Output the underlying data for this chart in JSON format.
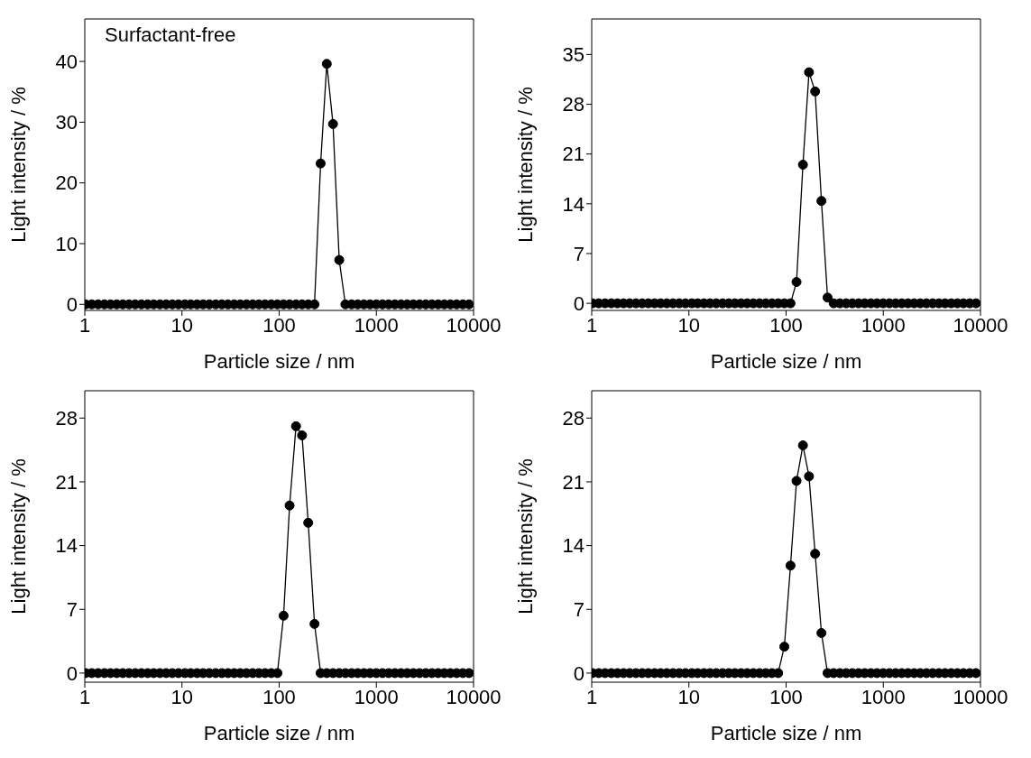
{
  "chart_data": [
    {
      "type": "line",
      "title": "Surfactant-free",
      "xlabel": "Particle size / nm",
      "ylabel": "Light intensity / %",
      "log": "x",
      "marker": "circle",
      "line_style": "solid",
      "xlim": [
        1,
        10000
      ],
      "xticks": [
        1,
        10,
        100,
        1000,
        10000
      ],
      "ylim": [
        -1,
        47
      ],
      "yticks": [
        0,
        10,
        20,
        30,
        40
      ],
      "x": [
        1.02,
        1.18,
        1.37,
        1.59,
        1.84,
        2.13,
        2.46,
        2.85,
        3.3,
        3.82,
        4.43,
        5.12,
        5.93,
        6.87,
        7.95,
        9.2,
        10.7,
        12.3,
        14.3,
        16.5,
        19.1,
        22.2,
        25.7,
        29.7,
        34.4,
        39.8,
        46.1,
        53.4,
        61.8,
        71.5,
        82.8,
        95.9,
        111,
        128,
        149,
        172,
        199,
        231,
        267,
        309,
        358,
        415,
        480,
        556,
        643,
        745,
        862,
        998,
        1156,
        1338,
        1549,
        1793,
        2076,
        2404,
        2783,
        3221,
        3729,
        4317,
        4998,
        5786,
        6699,
        7755,
        8978
      ],
      "series": [
        {
          "color": "#000000",
          "values": [
            0,
            0,
            0,
            0,
            0,
            0,
            0,
            0,
            0,
            0,
            0,
            0,
            0,
            0,
            0,
            0,
            0,
            0,
            0,
            0,
            0,
            0,
            0,
            0,
            0,
            0,
            0,
            0,
            0,
            0,
            0,
            0,
            0,
            0,
            0,
            0,
            0,
            0,
            23.2,
            39.6,
            29.7,
            7.3,
            0,
            0,
            0,
            0,
            0,
            0,
            0,
            0,
            0,
            0,
            0,
            0,
            0,
            0,
            0,
            0,
            0,
            0,
            0,
            0,
            0
          ]
        }
      ]
    },
    {
      "type": "line",
      "xlabel": "Particle size / nm",
      "ylabel": "Light intensity / %",
      "log": "x",
      "marker": "circle",
      "line_style": "solid",
      "xlim": [
        1,
        10000
      ],
      "xticks": [
        1,
        10,
        100,
        1000,
        10000
      ],
      "ylim": [
        -1,
        40
      ],
      "yticks": [
        0,
        7,
        14,
        21,
        28,
        35
      ],
      "x": [
        1.02,
        1.18,
        1.37,
        1.59,
        1.84,
        2.13,
        2.46,
        2.85,
        3.3,
        3.82,
        4.43,
        5.12,
        5.93,
        6.87,
        7.95,
        9.2,
        10.7,
        12.3,
        14.3,
        16.5,
        19.1,
        22.2,
        25.7,
        29.7,
        34.4,
        39.8,
        46.1,
        53.4,
        61.8,
        71.5,
        82.8,
        95.9,
        111,
        128,
        149,
        172,
        199,
        231,
        267,
        309,
        358,
        415,
        480,
        556,
        643,
        745,
        862,
        998,
        1156,
        1338,
        1549,
        1793,
        2076,
        2404,
        2783,
        3221,
        3729,
        4317,
        4998,
        5786,
        6699,
        7755,
        8978
      ],
      "series": [
        {
          "color": "#000000",
          "values": [
            0,
            0,
            0,
            0,
            0,
            0,
            0,
            0,
            0,
            0,
            0,
            0,
            0,
            0,
            0,
            0,
            0,
            0,
            0,
            0,
            0,
            0,
            0,
            0,
            0,
            0,
            0,
            0,
            0,
            0,
            0,
            0,
            0,
            3.0,
            19.5,
            32.5,
            29.8,
            14.4,
            0.8,
            0,
            0,
            0,
            0,
            0,
            0,
            0,
            0,
            0,
            0,
            0,
            0,
            0,
            0,
            0,
            0,
            0,
            0,
            0,
            0,
            0,
            0,
            0,
            0
          ]
        }
      ]
    },
    {
      "type": "line",
      "xlabel": "Particle size / nm",
      "ylabel": "Light intensity / %",
      "log": "x",
      "marker": "circle",
      "line_style": "solid",
      "xlim": [
        1,
        10000
      ],
      "xticks": [
        1,
        10,
        100,
        1000,
        10000
      ],
      "ylim": [
        -1,
        31
      ],
      "yticks": [
        0,
        7,
        14,
        21,
        28
      ],
      "x": [
        1.02,
        1.18,
        1.37,
        1.59,
        1.84,
        2.13,
        2.46,
        2.85,
        3.3,
        3.82,
        4.43,
        5.12,
        5.93,
        6.87,
        7.95,
        9.2,
        10.7,
        12.3,
        14.3,
        16.5,
        19.1,
        22.2,
        25.7,
        29.7,
        34.4,
        39.8,
        46.1,
        53.4,
        61.8,
        71.5,
        82.8,
        95.9,
        111,
        128,
        149,
        172,
        199,
        231,
        267,
        309,
        358,
        415,
        480,
        556,
        643,
        745,
        862,
        998,
        1156,
        1338,
        1549,
        1793,
        2076,
        2404,
        2783,
        3221,
        3729,
        4317,
        4998,
        5786,
        6699,
        7755,
        8978
      ],
      "series": [
        {
          "color": "#000000",
          "values": [
            0,
            0,
            0,
            0,
            0,
            0,
            0,
            0,
            0,
            0,
            0,
            0,
            0,
            0,
            0,
            0,
            0,
            0,
            0,
            0,
            0,
            0,
            0,
            0,
            0,
            0,
            0,
            0,
            0,
            0,
            0,
            0,
            6.3,
            18.4,
            27.1,
            26.1,
            16.5,
            5.4,
            0,
            0,
            0,
            0,
            0,
            0,
            0,
            0,
            0,
            0,
            0,
            0,
            0,
            0,
            0,
            0,
            0,
            0,
            0,
            0,
            0,
            0,
            0,
            0,
            0
          ]
        }
      ]
    },
    {
      "type": "line",
      "xlabel": "Particle size / nm",
      "ylabel": "Light intensity / %",
      "log": "x",
      "marker": "circle",
      "line_style": "solid",
      "xlim": [
        1,
        10000
      ],
      "xticks": [
        1,
        10,
        100,
        1000,
        10000
      ],
      "ylim": [
        -1,
        31
      ],
      "yticks": [
        0,
        7,
        14,
        21,
        28
      ],
      "x": [
        1.02,
        1.18,
        1.37,
        1.59,
        1.84,
        2.13,
        2.46,
        2.85,
        3.3,
        3.82,
        4.43,
        5.12,
        5.93,
        6.87,
        7.95,
        9.2,
        10.7,
        12.3,
        14.3,
        16.5,
        19.1,
        22.2,
        25.7,
        29.7,
        34.4,
        39.8,
        46.1,
        53.4,
        61.8,
        71.5,
        82.8,
        95.9,
        111,
        128,
        149,
        172,
        199,
        231,
        267,
        309,
        358,
        415,
        480,
        556,
        643,
        745,
        862,
        998,
        1156,
        1338,
        1549,
        1793,
        2076,
        2404,
        2783,
        3221,
        3729,
        4317,
        4998,
        5786,
        6699,
        7755,
        8978
      ],
      "series": [
        {
          "color": "#000000",
          "values": [
            0,
            0,
            0,
            0,
            0,
            0,
            0,
            0,
            0,
            0,
            0,
            0,
            0,
            0,
            0,
            0,
            0,
            0,
            0,
            0,
            0,
            0,
            0,
            0,
            0,
            0,
            0,
            0,
            0,
            0,
            0,
            2.9,
            11.8,
            21.1,
            25.0,
            21.6,
            13.1,
            4.4,
            0,
            0,
            0,
            0,
            0,
            0,
            0,
            0,
            0,
            0,
            0,
            0,
            0,
            0,
            0,
            0,
            0,
            0,
            0,
            0,
            0,
            0,
            0,
            0,
            0
          ]
        }
      ]
    }
  ]
}
